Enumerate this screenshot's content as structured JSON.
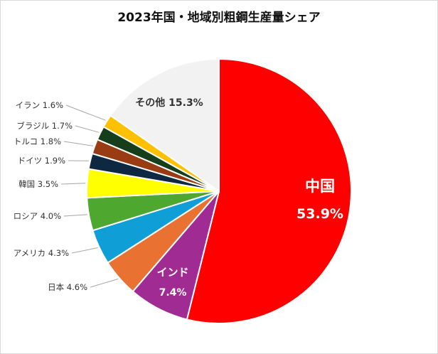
{
  "chart_data": {
    "type": "pie",
    "title": "2023年国・地域別粗鋼生産量シェア",
    "slices": [
      {
        "name": "中国",
        "value_label": "53.9%",
        "value": 53.9,
        "color": "#ff0000"
      },
      {
        "name": "インド",
        "value_label": "7.4%",
        "value": 7.4,
        "color": "#a02b93"
      },
      {
        "name": "日本",
        "value_label": "4.6%",
        "value": 4.6,
        "color": "#e97132"
      },
      {
        "name": "アメリカ",
        "value_label": "4.3%",
        "value": 4.3,
        "color": "#0f9ed5"
      },
      {
        "name": "ロシア",
        "value_label": "4.0%",
        "value": 4.0,
        "color": "#4ea72e"
      },
      {
        "name": "韓国",
        "value_label": "3.5%",
        "value": 3.5,
        "color": "#ffff00"
      },
      {
        "name": "ドイツ",
        "value_label": "1.9%",
        "value": 1.9,
        "color": "#0e2841"
      },
      {
        "name": "トルコ",
        "value_label": "1.8%",
        "value": 1.8,
        "color": "#9a3c13"
      },
      {
        "name": "ブラジル",
        "value_label": "1.7%",
        "value": 1.7,
        "color": "#163e1a"
      },
      {
        "name": "イラン",
        "value_label": "1.6%",
        "value": 1.6,
        "color": "#ffc000"
      },
      {
        "name": "その他",
        "value_label": "15.3%",
        "value": 15.3,
        "color": "#f2f2f2"
      }
    ],
    "start_angle_deg": 0,
    "direction": "clockwise"
  }
}
